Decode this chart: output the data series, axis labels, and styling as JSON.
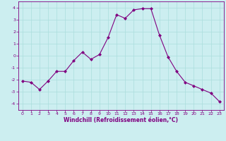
{
  "x": [
    0,
    1,
    2,
    3,
    4,
    5,
    6,
    7,
    8,
    9,
    10,
    11,
    12,
    13,
    14,
    15,
    16,
    17,
    18,
    19,
    20,
    21,
    22,
    23
  ],
  "y": [
    -2.1,
    -2.2,
    -2.8,
    -2.1,
    -1.3,
    -1.3,
    -0.4,
    0.3,
    -0.3,
    0.1,
    1.5,
    3.4,
    3.1,
    3.8,
    3.9,
    3.9,
    1.7,
    -0.1,
    -1.3,
    -2.2,
    -2.5,
    -2.8,
    -3.1,
    -3.8
  ],
  "line_color": "#800080",
  "marker": "D",
  "marker_size": 2.0,
  "bg_color": "#cceef0",
  "grid_color": "#aadddd",
  "xlabel": "Windchill (Refroidissement éolien,°C)",
  "ylabel": "",
  "ylim": [
    -4.5,
    4.5
  ],
  "xlim": [
    -0.5,
    23.5
  ],
  "yticks": [
    -4,
    -3,
    -2,
    -1,
    0,
    1,
    2,
    3,
    4
  ],
  "xticks": [
    0,
    1,
    2,
    3,
    4,
    5,
    6,
    7,
    8,
    9,
    10,
    11,
    12,
    13,
    14,
    15,
    16,
    17,
    18,
    19,
    20,
    21,
    22,
    23
  ],
  "tick_color": "#800080",
  "label_color": "#800080",
  "spine_color": "#800080",
  "title": "",
  "figsize": [
    3.2,
    2.0
  ],
  "dpi": 100
}
